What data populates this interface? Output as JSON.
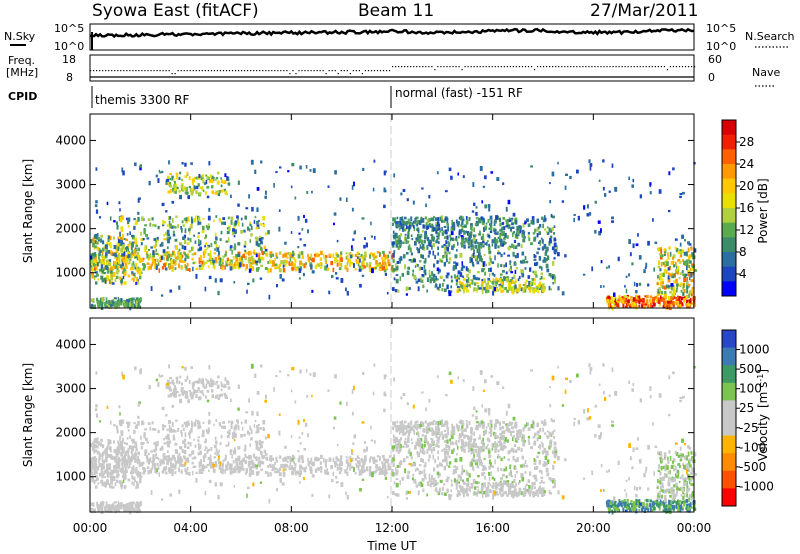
{
  "header": {
    "station": "Syowa East (fitACF)",
    "beam": "Beam 11",
    "date": "27/Mar/2011"
  },
  "aux_panels": {
    "nsky_label": "N.Sky",
    "nsearch_label": "N.Search",
    "freq_label_line1": "Freq.",
    "freq_label_line2": "[MHz]",
    "nave_label": "Nave",
    "cpid_label": "CPID",
    "noise_ticks_left": [
      "10^5",
      "10^0"
    ],
    "noise_ticks_right": [
      "10^5",
      "10^0"
    ],
    "freq_ticks": [
      "18",
      "8"
    ],
    "nave_ticks": [
      "60",
      "0"
    ],
    "cpid_segments": [
      {
        "label": "themis 3300 RF",
        "start_hour": 0
      },
      {
        "label": "normal (fast) -151 RF",
        "start_hour": 12
      }
    ]
  },
  "chart_data": [
    {
      "type": "heatmap",
      "title": "",
      "xlabel": "",
      "ylabel": "Slant Range [km]",
      "x_range_hours": [
        0,
        24
      ],
      "ylim": [
        200,
        4600
      ],
      "y_ticks": [
        "1000",
        "2000",
        "3000",
        "4000"
      ],
      "colorbar": {
        "label": "Power [dB]",
        "ticks": [
          "28",
          "24",
          "20",
          "16",
          "12",
          "8",
          "4"
        ],
        "colors": [
          "#d80000",
          "#f02000",
          "#ff6000",
          "#ff9a00",
          "#ffc800",
          "#e8e000",
          "#b0d040",
          "#5aaa50",
          "#3c8c6a",
          "#2c6ea0",
          "#1c46c0",
          "#0000ff"
        ],
        "range": [
          0,
          30
        ]
      }
    },
    {
      "type": "heatmap",
      "title": "",
      "xlabel": "Time UT",
      "ylabel": "Slant Range [km]",
      "x_range_hours": [
        0,
        24
      ],
      "ylim": [
        200,
        4600
      ],
      "y_ticks": [
        "1000",
        "2000",
        "3000",
        "4000"
      ],
      "x_ticks": [
        "00:00",
        "04:00",
        "08:00",
        "12:00",
        "16:00",
        "20:00",
        "00:00"
      ],
      "colorbar": {
        "label": "Velocity",
        "unit": "[m s",
        "unit_exp": "-1",
        "unit_end": "]",
        "ticks": [
          "1000",
          "500",
          "100",
          "25",
          "-25",
          "-100",
          "-500",
          "-1000"
        ],
        "colors": [
          "#2846c8",
          "#3c7ab4",
          "#3c9a64",
          "#7cc450",
          "#c8c8c8",
          "#c8c8c8",
          "#ffb400",
          "#ff8c00",
          "#ff5000",
          "#ff0000"
        ],
        "range": [
          -1200,
          1200
        ]
      }
    }
  ]
}
